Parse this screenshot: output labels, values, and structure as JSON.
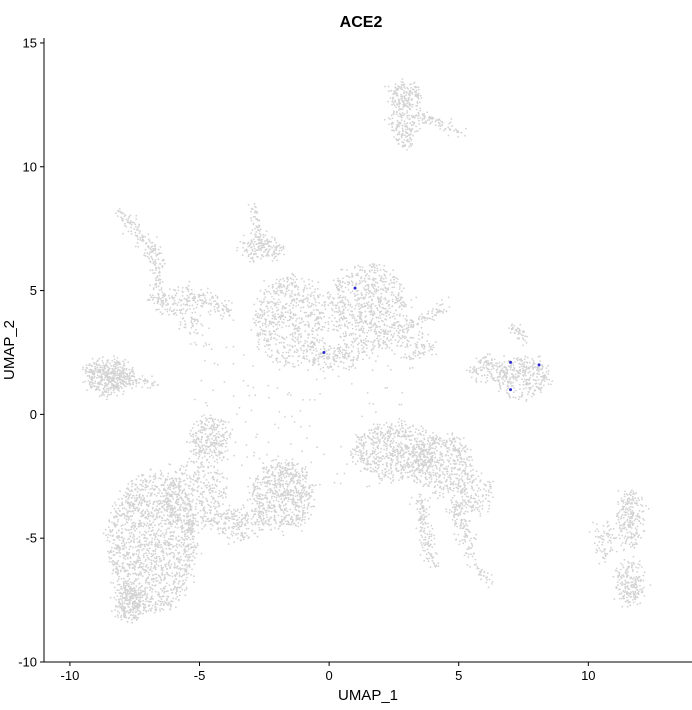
{
  "chart_data": {
    "type": "scatter",
    "title": "ACE2",
    "xlabel": "UMAP_1",
    "ylabel": "UMAP_2",
    "xlim": [
      -11.0,
      14.0
    ],
    "ylim": [
      -10.0,
      15.2
    ],
    "xticks": [
      -10,
      -5,
      0,
      5,
      10
    ],
    "yticks": [
      -10,
      -5,
      0,
      5,
      10,
      15
    ],
    "grid": false,
    "legend": "none",
    "colors": {
      "background_points": "#d3d3d3",
      "expressing_points": "#2c2cc8"
    },
    "clusters": [
      {
        "shape": "blob",
        "cx": -6.8,
        "cy": -5.2,
        "rx": 1.7,
        "ry": 2.8,
        "n": 1500
      },
      {
        "shape": "blob",
        "cx": -5.2,
        "cy": -3.3,
        "rx": 1.2,
        "ry": 1.4,
        "n": 400
      },
      {
        "shape": "blob",
        "cx": -7.7,
        "cy": -7.6,
        "rx": 0.55,
        "ry": 0.7,
        "n": 260
      },
      {
        "shape": "blob",
        "cx": -4.6,
        "cy": -1.0,
        "rx": 0.8,
        "ry": 0.9,
        "n": 260
      },
      {
        "shape": "blob",
        "cx": -1.8,
        "cy": -3.3,
        "rx": 1.2,
        "ry": 1.4,
        "n": 650
      },
      {
        "shape": "blob",
        "cx": -3.5,
        "cy": -4.4,
        "rx": 1.0,
        "ry": 0.6,
        "n": 180
      },
      {
        "shape": "blob",
        "cx": -8.5,
        "cy": 1.5,
        "rx": 0.9,
        "ry": 0.7,
        "n": 380
      },
      {
        "shape": "line",
        "x1": -9.3,
        "y1": 1.9,
        "x2": -6.8,
        "y2": 1.2,
        "w": 0.35,
        "n": 120
      },
      {
        "shape": "line",
        "x1": -8.0,
        "y1": 8.2,
        "x2": -6.6,
        "y2": 6.3,
        "w": 0.3,
        "n": 120
      },
      {
        "shape": "line",
        "x1": -6.6,
        "y1": 6.3,
        "x2": -6.6,
        "y2": 4.6,
        "w": 0.3,
        "n": 70
      },
      {
        "shape": "line",
        "x1": -5.5,
        "y1": 5.0,
        "x2": -3.9,
        "y2": 4.1,
        "w": 0.35,
        "n": 110
      },
      {
        "shape": "blob",
        "cx": -6.0,
        "cy": 4.5,
        "rx": 0.9,
        "ry": 0.5,
        "n": 120
      },
      {
        "shape": "blob",
        "cx": -5.2,
        "cy": 3.6,
        "rx": 0.5,
        "ry": 0.4,
        "n": 40
      },
      {
        "shape": "blob",
        "cx": -2.6,
        "cy": 6.7,
        "rx": 0.8,
        "ry": 0.4,
        "n": 150
      },
      {
        "shape": "line",
        "x1": -3.0,
        "y1": 8.3,
        "x2": -2.6,
        "y2": 6.9,
        "w": 0.25,
        "n": 60
      },
      {
        "shape": "blob",
        "cx": -1.5,
        "cy": 3.8,
        "rx": 1.4,
        "ry": 1.8,
        "n": 600
      },
      {
        "shape": "blob",
        "cx": 1.5,
        "cy": 4.3,
        "rx": 1.5,
        "ry": 1.8,
        "n": 700
      },
      {
        "shape": "blob",
        "cx": 0.2,
        "cy": 2.3,
        "rx": 1.0,
        "ry": 0.5,
        "n": 150
      },
      {
        "shape": "blob",
        "cx": 3.3,
        "cy": 2.8,
        "rx": 0.8,
        "ry": 0.5,
        "n": 90
      },
      {
        "shape": "line",
        "x1": 2.6,
        "y1": 3.3,
        "x2": 4.5,
        "y2": 4.3,
        "w": 0.3,
        "n": 90
      },
      {
        "shape": "blob",
        "cx": 2.9,
        "cy": 12.9,
        "rx": 0.6,
        "ry": 0.45,
        "n": 150
      },
      {
        "shape": "blob",
        "cx": 2.9,
        "cy": 11.7,
        "rx": 0.45,
        "ry": 0.9,
        "n": 180
      },
      {
        "shape": "line",
        "x1": 3.3,
        "y1": 12.1,
        "x2": 5.2,
        "y2": 11.4,
        "w": 0.25,
        "n": 80
      },
      {
        "shape": "blob",
        "cx": 2.5,
        "cy": -1.5,
        "rx": 1.6,
        "ry": 1.1,
        "n": 600
      },
      {
        "shape": "blob",
        "cx": 4.3,
        "cy": -2.0,
        "rx": 1.2,
        "ry": 1.2,
        "n": 450
      },
      {
        "shape": "blob",
        "cx": 5.5,
        "cy": -3.2,
        "rx": 0.8,
        "ry": 0.8,
        "n": 160
      },
      {
        "shape": "line",
        "x1": 3.5,
        "y1": -3.3,
        "x2": 4.0,
        "y2": -6.0,
        "w": 0.3,
        "n": 140
      },
      {
        "shape": "line",
        "x1": 4.8,
        "y1": -3.5,
        "x2": 5.5,
        "y2": -5.6,
        "w": 0.35,
        "n": 130
      },
      {
        "shape": "line",
        "x1": 5.5,
        "y1": -6.1,
        "x2": 6.2,
        "y2": -6.8,
        "w": 0.2,
        "n": 30
      },
      {
        "shape": "blob",
        "cx": 7.5,
        "cy": 1.5,
        "rx": 1.0,
        "ry": 0.8,
        "n": 300
      },
      {
        "shape": "blob",
        "cx": 6.1,
        "cy": 1.8,
        "rx": 0.7,
        "ry": 0.5,
        "n": 120
      },
      {
        "shape": "line",
        "x1": 7.0,
        "y1": 3.7,
        "x2": 7.6,
        "y2": 3.0,
        "w": 0.2,
        "n": 40
      },
      {
        "shape": "blob",
        "cx": 11.6,
        "cy": -4.2,
        "rx": 0.5,
        "ry": 1.1,
        "n": 220
      },
      {
        "shape": "blob",
        "cx": 11.6,
        "cy": -6.8,
        "rx": 0.5,
        "ry": 0.9,
        "n": 200
      },
      {
        "shape": "blob",
        "cx": 10.6,
        "cy": -5.2,
        "rx": 0.4,
        "ry": 0.8,
        "n": 70
      },
      {
        "shape": "scatter",
        "cx": -1.0,
        "cy": 0.0,
        "rx": 4.5,
        "ry": 3.0,
        "n": 160
      }
    ],
    "expressing_cells": [
      {
        "x": 1.0,
        "y": 5.1
      },
      {
        "x": -0.2,
        "y": 2.5
      },
      {
        "x": 7.0,
        "y": 1.0
      },
      {
        "x": 8.1,
        "y": 2.0
      },
      {
        "x": 7.0,
        "y": 2.1
      }
    ]
  }
}
